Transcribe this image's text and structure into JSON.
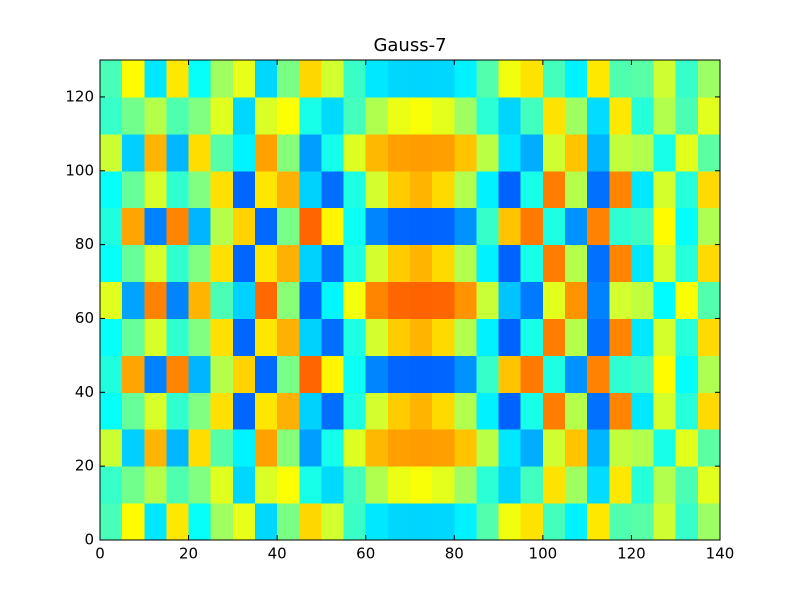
{
  "chart_data": {
    "type": "heatmap",
    "title": "Gauss-7",
    "colormap": "jet",
    "clim": [
      -1.8,
      1.8
    ],
    "x": [
      2.5,
      7.5,
      12.5,
      17.5,
      22.5,
      27.5,
      32.5,
      37.5,
      42.5,
      47.5,
      52.5,
      57.5,
      62.5,
      67.5,
      72.5,
      77.5,
      82.5,
      87.5,
      92.5,
      97.5,
      102.5,
      107.5,
      112.5,
      117.5,
      122.5,
      127.5,
      132.5,
      137.5
    ],
    "y": [
      5,
      15,
      25,
      35,
      45,
      55,
      65,
      75,
      85,
      95,
      105,
      115,
      125
    ],
    "values": [
      [
        -0.2,
        0.46,
        -0.53,
        0.53,
        -0.43,
        0.11,
        0.37,
        -0.59,
        -0.02,
        0.59,
        0.29,
        -0.25,
        -0.53,
        -0.59,
        -0.6,
        -0.59,
        -0.5,
        -0.16,
        0.4,
        0.55,
        -0.21,
        -0.5,
        0.53,
        -0.17,
        -0.14,
        0.28,
        -0.26,
        0.1
      ],
      [
        -0.26,
        -0.05,
        0.19,
        -0.17,
        0,
        0.34,
        -0.59,
        0.32,
        0.44,
        -0.37,
        -0.58,
        -0.21,
        0.17,
        0.38,
        0.43,
        0.35,
        0.11,
        -0.3,
        -0.6,
        -0.22,
        0.55,
        0.11,
        -0.57,
        0.53,
        -0.32,
        0.18,
        -0.19,
        0.35
      ],
      [
        0.27,
        -0.62,
        0.71,
        -0.7,
        0.57,
        -0.15,
        -0.49,
        0.78,
        0.02,
        -0.79,
        -0.38,
        0.33,
        0.7,
        0.79,
        0.8,
        0.79,
        0.66,
        0.21,
        -0.53,
        -0.74,
        0.28,
        0.66,
        -0.71,
        0.23,
        0.18,
        -0.37,
        0.35,
        -0.13
      ],
      [
        -0.43,
        -0.09,
        0.31,
        -0.28,
        0,
        0.56,
        -0.99,
        0.54,
        0.73,
        -0.61,
        -0.96,
        -0.35,
        0.29,
        0.63,
        0.71,
        0.58,
        0.18,
        -0.5,
        -1.0,
        -0.37,
        0.91,
        0.19,
        -0.95,
        0.88,
        -0.53,
        0.3,
        -0.32,
        0.58
      ],
      [
        -0.34,
        0.77,
        -0.89,
        0.88,
        -0.71,
        0.19,
        0.61,
        -0.98,
        -0.03,
        0.99,
        0.48,
        -0.41,
        -0.88,
        -0.99,
        -1,
        -0.99,
        -0.83,
        -0.26,
        0.66,
        0.92,
        -0.35,
        -0.83,
        0.89,
        -0.29,
        -0.23,
        0.46,
        -0.44,
        0.16
      ],
      [
        -0.43,
        -0.09,
        0.31,
        -0.28,
        0,
        0.56,
        -0.99,
        0.54,
        0.73,
        -0.61,
        -0.96,
        -0.35,
        0.29,
        0.63,
        0.71,
        0.58,
        0.18,
        -0.5,
        -1.0,
        -0.37,
        0.91,
        0.19,
        -0.95,
        0.88,
        -0.53,
        0.3,
        -0.32,
        0.58
      ],
      [
        0.34,
        -0.77,
        0.89,
        -0.88,
        0.71,
        -0.19,
        -0.61,
        0.98,
        0.03,
        -0.99,
        -0.48,
        0.41,
        0.88,
        0.99,
        1,
        0.99,
        0.83,
        0.26,
        -0.66,
        -0.92,
        0.35,
        0.83,
        -0.89,
        0.29,
        0.23,
        -0.46,
        0.44,
        -0.16
      ],
      [
        -0.43,
        -0.09,
        0.31,
        -0.28,
        0,
        0.56,
        -0.99,
        0.54,
        0.73,
        -0.61,
        -0.96,
        -0.35,
        0.29,
        0.63,
        0.71,
        0.58,
        0.18,
        -0.5,
        -1.0,
        -0.37,
        0.91,
        0.19,
        -0.95,
        0.88,
        -0.53,
        0.3,
        -0.32,
        0.58
      ],
      [
        -0.34,
        0.77,
        -0.89,
        0.88,
        -0.71,
        0.19,
        0.61,
        -0.98,
        -0.03,
        0.99,
        0.48,
        -0.41,
        -0.88,
        -0.99,
        -1,
        -0.99,
        -0.83,
        -0.26,
        0.66,
        0.92,
        -0.35,
        -0.83,
        0.89,
        -0.29,
        -0.23,
        0.46,
        -0.44,
        0.16
      ],
      [
        -0.43,
        -0.09,
        0.31,
        -0.28,
        0,
        0.56,
        -0.99,
        0.54,
        0.73,
        -0.61,
        -0.96,
        -0.35,
        0.29,
        0.63,
        0.71,
        0.58,
        0.18,
        -0.5,
        -1.0,
        -0.37,
        0.91,
        0.19,
        -0.95,
        0.88,
        -0.53,
        0.3,
        -0.32,
        0.58
      ],
      [
        0.27,
        -0.62,
        0.71,
        -0.7,
        0.57,
        -0.15,
        -0.49,
        0.78,
        0.02,
        -0.79,
        -0.38,
        0.33,
        0.7,
        0.79,
        0.8,
        0.79,
        0.66,
        0.21,
        -0.53,
        -0.74,
        0.28,
        0.66,
        -0.71,
        0.23,
        0.18,
        -0.37,
        0.35,
        -0.13
      ],
      [
        -0.26,
        -0.05,
        0.19,
        -0.17,
        0,
        0.34,
        -0.59,
        0.32,
        0.44,
        -0.37,
        -0.58,
        -0.21,
        0.17,
        0.38,
        0.43,
        0.35,
        0.11,
        -0.3,
        -0.6,
        -0.22,
        0.55,
        0.11,
        -0.57,
        0.53,
        -0.32,
        0.18,
        -0.19,
        0.35
      ],
      [
        -0.2,
        0.46,
        -0.53,
        0.53,
        -0.43,
        0.11,
        0.37,
        -0.59,
        -0.02,
        0.59,
        0.29,
        -0.25,
        -0.53,
        -0.59,
        -0.6,
        -0.59,
        -0.5,
        -0.16,
        0.4,
        0.55,
        -0.21,
        -0.5,
        0.53,
        -0.17,
        -0.14,
        0.28,
        -0.26,
        0.1
      ]
    ],
    "xlim": [
      0,
      140
    ],
    "ylim": [
      0,
      130
    ],
    "xticks": [
      0,
      20,
      40,
      60,
      80,
      100,
      120,
      140
    ],
    "yticks": [
      0,
      20,
      40,
      60,
      80,
      100,
      120
    ]
  }
}
